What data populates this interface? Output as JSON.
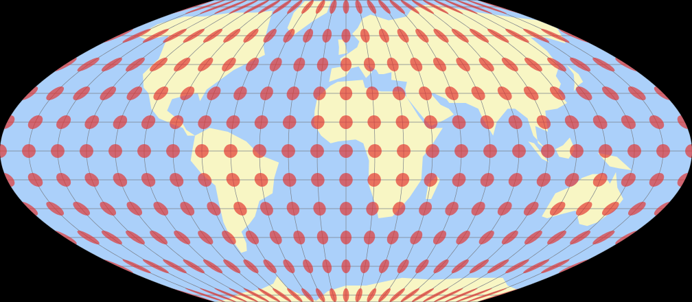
{
  "map": {
    "projection_kind": "pseudocylindrical world map with Tissot indicatrices",
    "graticule_step_degrees": 15,
    "indicatrix_step_degrees": 15,
    "colors": {
      "background": "#000000",
      "ocean": "#abd0fa",
      "land": "#f8f6c4",
      "graticule": "#7a7f88",
      "indicatrix": "#e2332f"
    }
  }
}
